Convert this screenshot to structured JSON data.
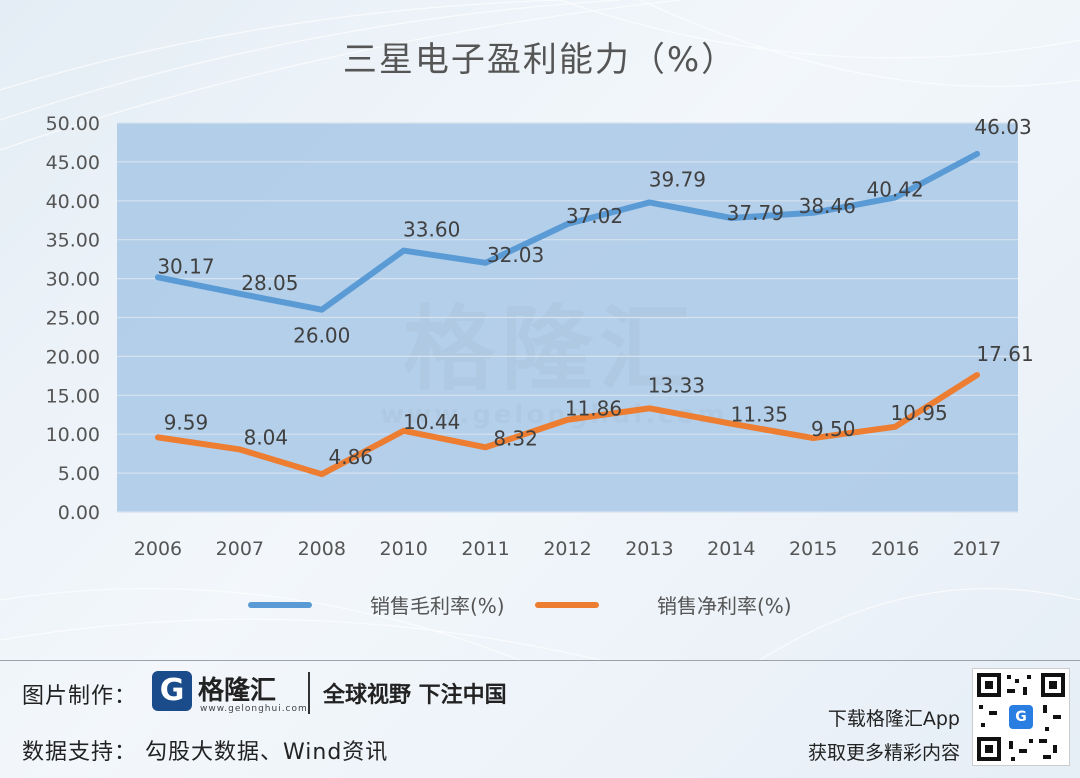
{
  "chart_data": {
    "type": "line",
    "title": "三星电子盈利能力（%）",
    "categories": [
      "2006",
      "2007",
      "2008",
      "2010",
      "2011",
      "2012",
      "2013",
      "2014",
      "2015",
      "2016",
      "2017"
    ],
    "yticks": [
      "0.00",
      "5.00",
      "10.00",
      "15.00",
      "20.00",
      "25.00",
      "30.00",
      "35.00",
      "40.00",
      "45.00",
      "50.00"
    ],
    "ylim": [
      0,
      50
    ],
    "grid": true,
    "legend_position": "bottom",
    "series": [
      {
        "name": "销售毛利率(%)",
        "color": "#5b9bd5",
        "values": [
          30.17,
          28.05,
          26.0,
          33.6,
          32.03,
          37.02,
          39.79,
          37.79,
          38.46,
          40.42,
          46.03
        ],
        "labels": [
          "30.17",
          "28.05",
          "26.00",
          "33.60",
          "32.03",
          "37.02",
          "39.79",
          "37.79",
          "38.46",
          "40.42",
          "46.03"
        ]
      },
      {
        "name": "销售净利率(%)",
        "color": "#ed7d31",
        "values": [
          9.59,
          8.04,
          4.86,
          10.44,
          8.32,
          11.86,
          13.33,
          11.35,
          9.5,
          10.95,
          17.61
        ],
        "labels": [
          "9.59",
          "8.04",
          "4.86",
          "10.44",
          "8.32",
          "11.86",
          "13.33",
          "11.35",
          "9.50",
          "10.95",
          "17.61"
        ]
      }
    ]
  },
  "watermark": {
    "text": "格隆汇",
    "url": "www.gelonghui.com"
  },
  "footer": {
    "credit_label": "图片制作：",
    "brand_logo_letter": "G",
    "brand_name": "格隆汇",
    "brand_url": "www.gelonghui.com",
    "slogan": "全球视野 下注中国",
    "source_label": "数据支持： 勾股大数据、Wind资讯",
    "promo_line1": "下载格隆汇App",
    "promo_line2": "获取更多精彩内容",
    "qr_center_letter": "G"
  }
}
